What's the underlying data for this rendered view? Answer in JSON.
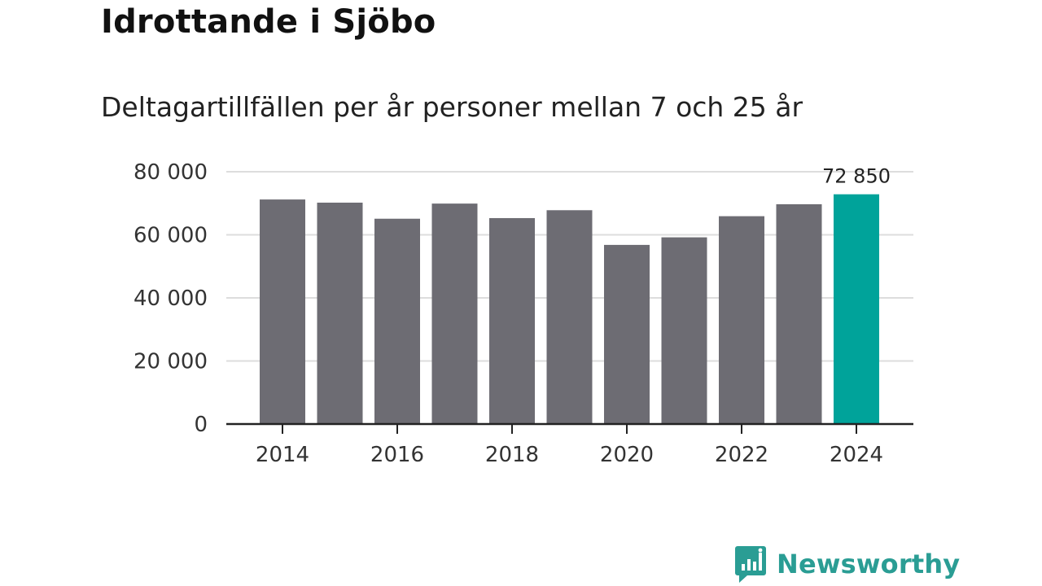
{
  "header": {
    "title": "Idrottande i Sjöbo",
    "subtitle": "Deltagartillfällen per år personer mellan 7 och 25 år"
  },
  "brand": {
    "name": "Newsworthy",
    "icon": "newsworthy-logo-icon",
    "color": "#2a9d94"
  },
  "chart_data": {
    "type": "bar",
    "title": "Idrottande i Sjöbo",
    "subtitle": "Deltagartillfällen per år personer mellan 7 och 25 år",
    "categories": [
      "2014",
      "2015",
      "2016",
      "2017",
      "2018",
      "2019",
      "2020",
      "2021",
      "2022",
      "2023",
      "2024"
    ],
    "values": [
      71200,
      70200,
      65100,
      69900,
      65300,
      67800,
      56800,
      59200,
      65900,
      69700,
      72850
    ],
    "x_tick_labels": [
      "2014",
      "2016",
      "2018",
      "2020",
      "2022",
      "2024"
    ],
    "y_tick_labels": [
      "0",
      "20 000",
      "40 000",
      "60 000",
      "80 000"
    ],
    "y_ticks": [
      0,
      20000,
      40000,
      60000,
      80000
    ],
    "ylim": [
      0,
      80000
    ],
    "grid": true,
    "highlight_index": 10,
    "highlight_label": "72 850",
    "colors": {
      "bar": "#6d6c73",
      "highlight": "#00a39a",
      "grid": "#dddddd",
      "axis": "#222222"
    }
  }
}
